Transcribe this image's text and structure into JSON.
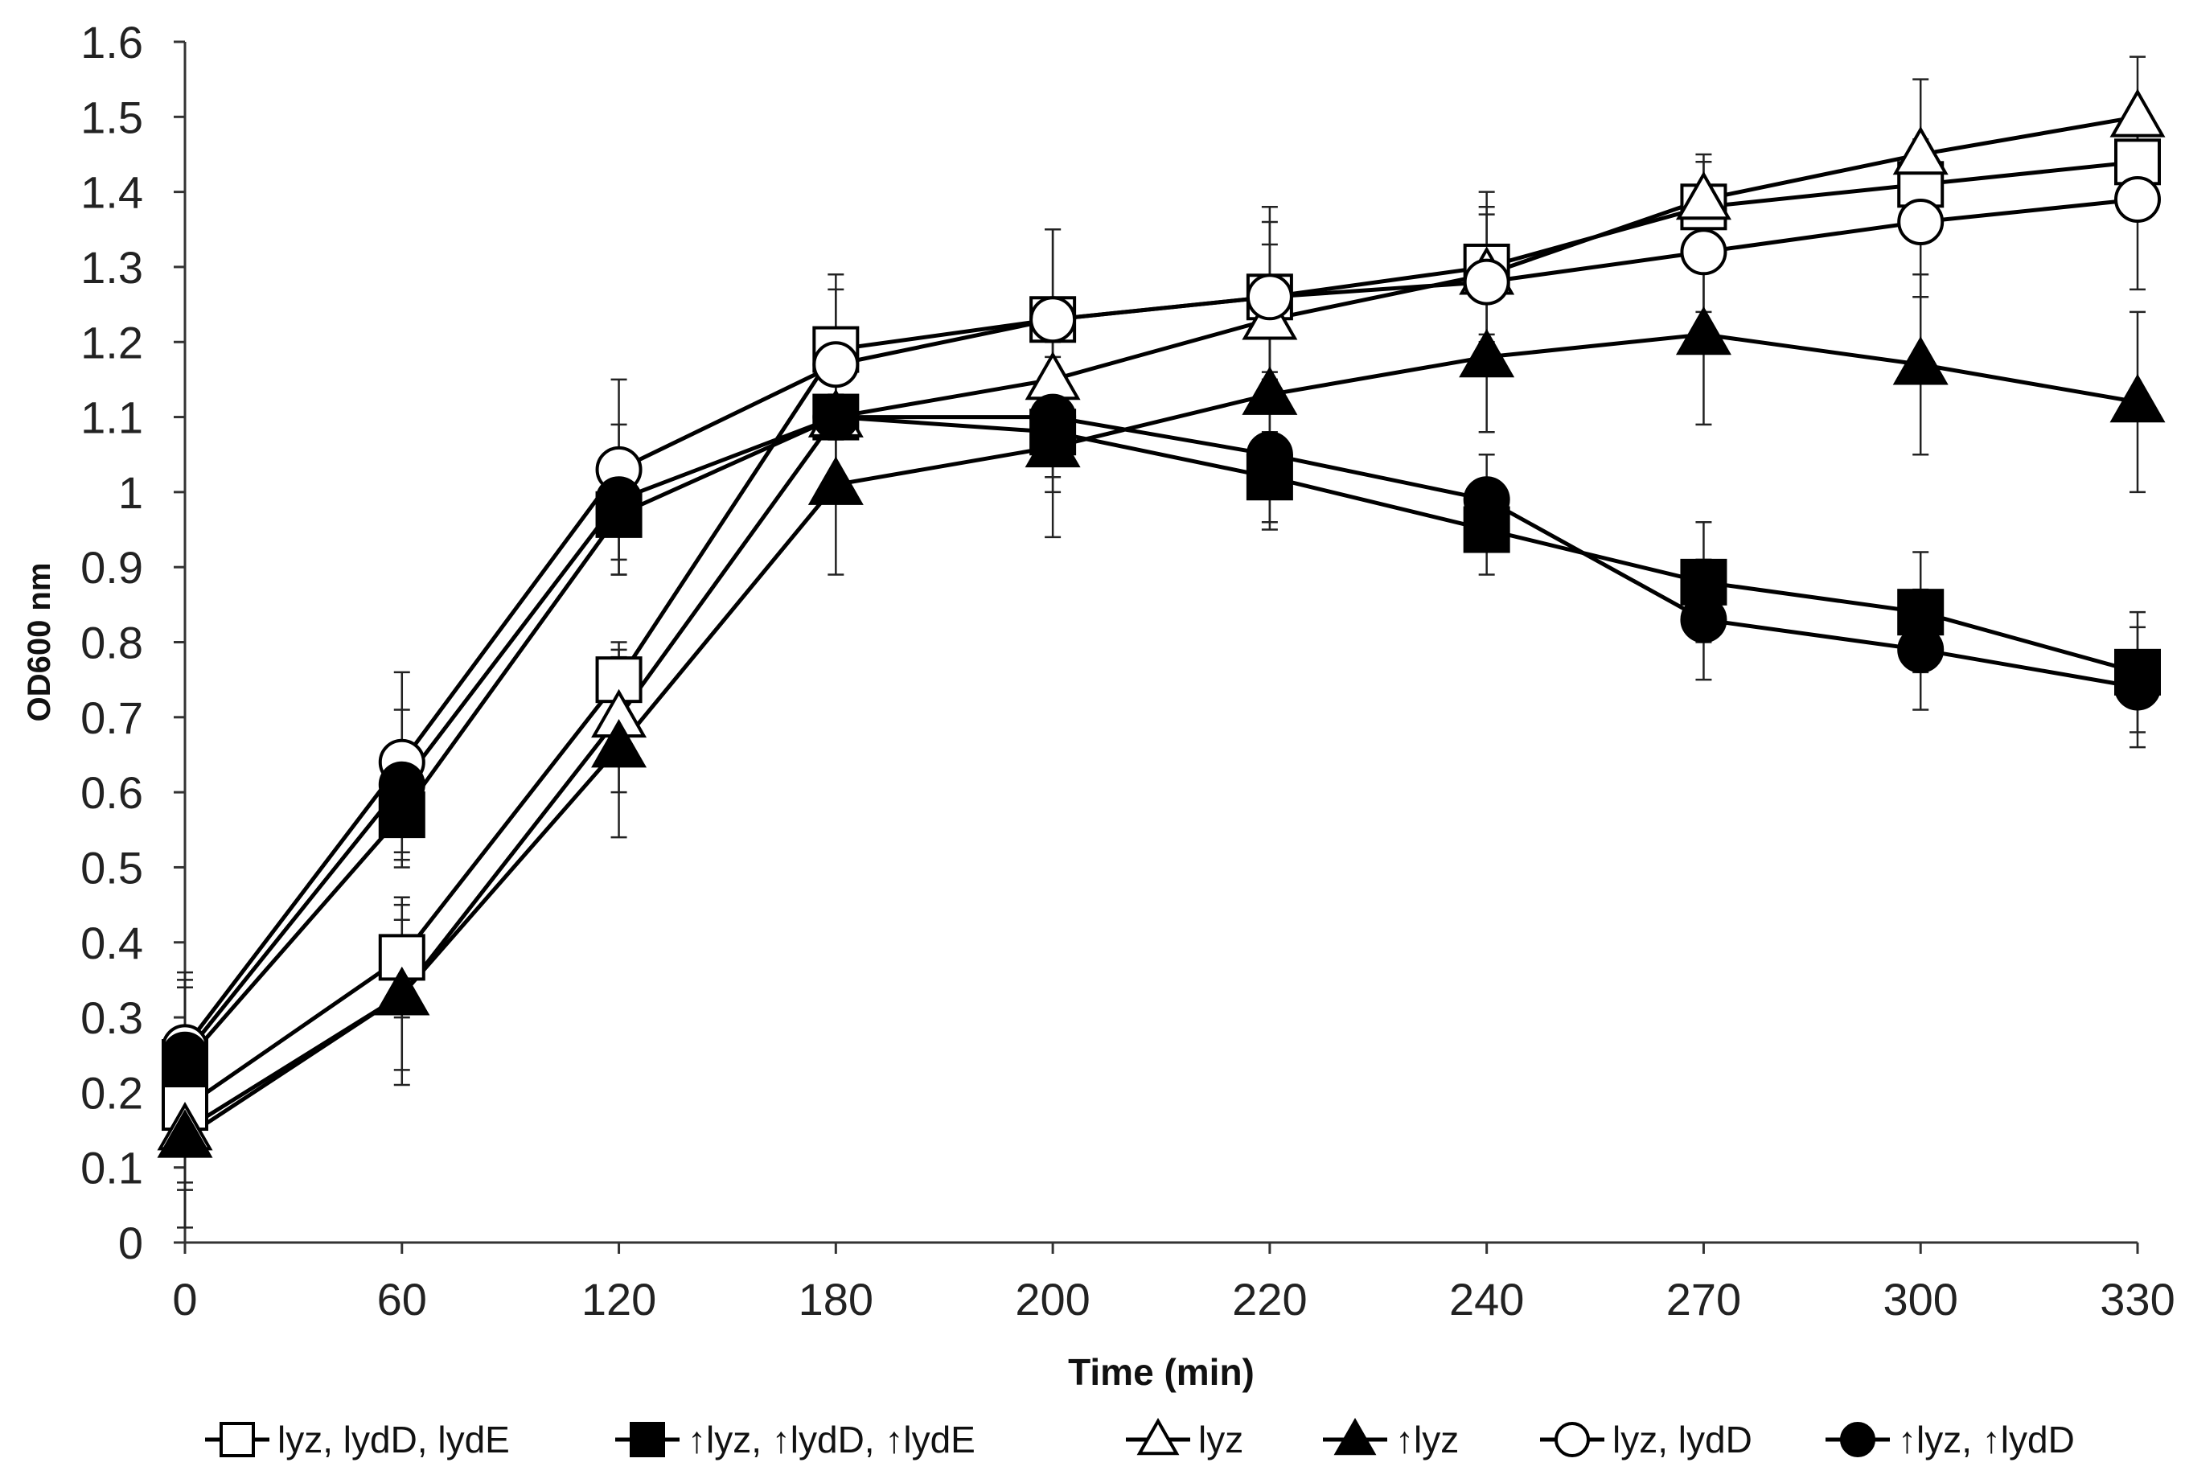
{
  "chart_data": {
    "type": "line",
    "title": "",
    "xlabel": "Time (min)",
    "ylabel": "OD600 nm",
    "categories": [
      "0",
      "60",
      "120",
      "180",
      "200",
      "220",
      "240",
      "270",
      "300",
      "330"
    ],
    "y_ticks": [
      "0",
      "0.1",
      "0.2",
      "0.3",
      "0.4",
      "0.5",
      "0.6",
      "0.7",
      "0.8",
      "0.9",
      "1",
      "1.1",
      "1.2",
      "1.3",
      "1.4",
      "1.5",
      "1.6"
    ],
    "ylim": [
      0,
      1.6
    ],
    "grid": false,
    "legend_position": "bottom",
    "series": [
      {
        "name": "lyz, lydD, lydE",
        "marker": "square",
        "fill": "open",
        "values": [
          0.18,
          0.38,
          0.75,
          1.19,
          1.23,
          1.26,
          1.3,
          1.38,
          1.41,
          1.44
        ],
        "errors": [
          0.16,
          0.08,
          0.04,
          0.1,
          0.12,
          0.12,
          0.1,
          0.06,
          0.06,
          0.06
        ]
      },
      {
        "name": "↑lyz, ↑lydD, ↑lydE",
        "marker": "square",
        "fill": "filled",
        "values": [
          0.24,
          0.57,
          0.97,
          1.1,
          1.08,
          1.02,
          0.95,
          0.88,
          0.84,
          0.76
        ],
        "errors": [
          0.1,
          0.07,
          0.08,
          0.08,
          0.06,
          0.06,
          0.06,
          0.08,
          0.08,
          0.08
        ]
      },
      {
        "name": "lyz",
        "marker": "triangle",
        "fill": "open",
        "values": [
          0.15,
          0.33,
          0.7,
          1.1,
          1.15,
          1.23,
          1.29,
          1.39,
          1.45,
          1.5
        ],
        "errors": [
          0.08,
          0.1,
          0.1,
          0.1,
          0.1,
          0.1,
          0.08,
          0.06,
          0.1,
          0.08
        ]
      },
      {
        "name": "↑lyz",
        "marker": "triangle",
        "fill": "filled",
        "values": [
          0.14,
          0.33,
          0.66,
          1.01,
          1.06,
          1.13,
          1.18,
          1.21,
          1.17,
          1.12
        ],
        "errors": [
          0.06,
          0.12,
          0.12,
          0.12,
          0.12,
          0.12,
          0.1,
          0.12,
          0.12,
          0.12
        ]
      },
      {
        "name": "lyz, lydD",
        "marker": "circle",
        "fill": "open",
        "values": [
          0.26,
          0.64,
          1.03,
          1.17,
          1.23,
          1.26,
          1.28,
          1.32,
          1.36,
          1.39
        ],
        "errors": [
          0.1,
          0.12,
          0.12,
          0.1,
          0.12,
          0.1,
          0.1,
          0.08,
          0.1,
          0.12
        ]
      },
      {
        "name": "↑lyz, ↑lydD",
        "marker": "circle",
        "fill": "filled",
        "values": [
          0.25,
          0.61,
          0.99,
          1.1,
          1.1,
          1.05,
          0.99,
          0.83,
          0.79,
          0.74
        ],
        "errors": [
          0.1,
          0.1,
          0.1,
          0.08,
          0.1,
          0.1,
          0.06,
          0.08,
          0.08,
          0.08
        ]
      }
    ]
  }
}
